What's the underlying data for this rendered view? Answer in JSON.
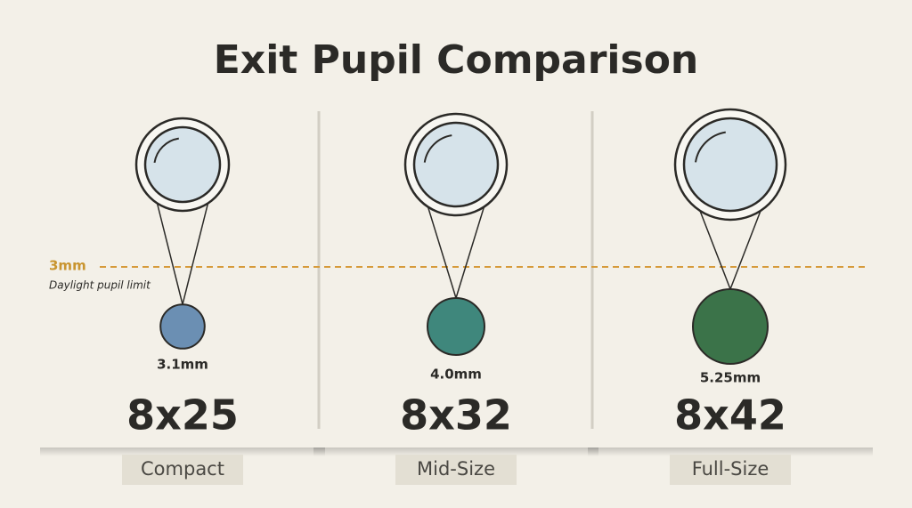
{
  "title": "Exit Pupil Comparison",
  "reference": {
    "label": "3mm",
    "note": "Daylight pupil limit"
  },
  "binoculars": [
    {
      "model": "8x25",
      "exit_pupil": {
        "value": 3.1,
        "label": "3.1mm"
      },
      "category": "Compact",
      "color": "#6b8fb3"
    },
    {
      "model": "8x32",
      "exit_pupil": {
        "value": 4.0,
        "label": "4.0mm"
      },
      "category": "Mid-Size",
      "color": "#3f877c"
    },
    {
      "model": "8x42",
      "exit_pupil": {
        "value": 5.25,
        "label": "5.25mm"
      },
      "category": "Full-Size",
      "color": "#3b7349"
    }
  ]
}
